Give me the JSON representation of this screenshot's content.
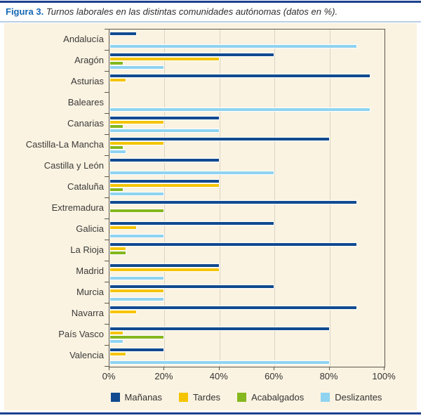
{
  "header": {
    "figure_label": "Figura 3.",
    "title": "Turnos laborales en las distintas comunidades autónomas (datos en %)."
  },
  "colors": {
    "rule_navy": "#1c418f",
    "rule_light_blue": "#b9cfe7",
    "panel_background": "#fbf3e1",
    "plot_border": "#5a564c",
    "gridline": "#dad5c7",
    "figure_label_blue": "#1568b3",
    "text": "#3a3a3a"
  },
  "chart_data": {
    "type": "bar",
    "orientation": "horizontal",
    "title": "Turnos laborales en las distintas comunidades autónomas (datos en %)",
    "xlabel": "",
    "ylabel": "",
    "xlim": [
      0,
      100
    ],
    "grid": true,
    "legend_position": "bottom",
    "x_ticks": [
      "0%",
      "20%",
      "40%",
      "60%",
      "80%",
      "100%"
    ],
    "categories": [
      "Andalucía",
      "Aragón",
      "Asturias",
      "Baleares",
      "Canarias",
      "Castilla-La Mancha",
      "Castilla y León",
      "Cataluña",
      "Extremadura",
      "Galicia",
      "La Rioja",
      "Madrid",
      "Murcia",
      "Navarra",
      "País Vasco",
      "Valencia"
    ],
    "series": [
      {
        "name": "Mañanas",
        "color": "#114a8f",
        "values": [
          10,
          60,
          95,
          0,
          40,
          80,
          40,
          40,
          90,
          60,
          90,
          40,
          60,
          90,
          80,
          20
        ]
      },
      {
        "name": "Tardes",
        "color": "#f5c400",
        "values": [
          0,
          40,
          6,
          0,
          20,
          20,
          0,
          40,
          0,
          10,
          6,
          40,
          20,
          10,
          5,
          6
        ]
      },
      {
        "name": "Acabalgados",
        "color": "#85b71e",
        "values": [
          0,
          5,
          0,
          0,
          5,
          5,
          0,
          5,
          20,
          0,
          6,
          0,
          0,
          0,
          20,
          0
        ]
      },
      {
        "name": "Deslizantes",
        "color": "#8fd3f0",
        "values": [
          90,
          20,
          0,
          95,
          40,
          6,
          60,
          20,
          0,
          20,
          0,
          20,
          20,
          0,
          5,
          80
        ]
      }
    ]
  }
}
